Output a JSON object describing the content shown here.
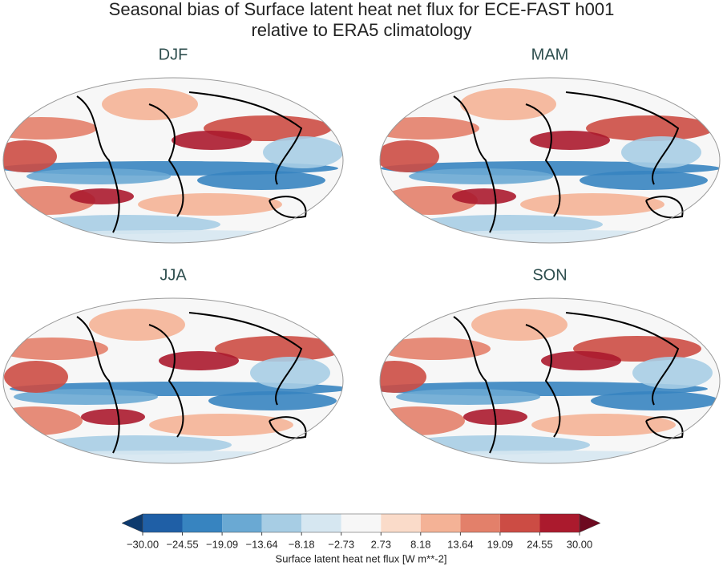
{
  "title": "Seasonal bias of Surface latent heat net flux for ECE-FAST h001",
  "subtitle": "relative to ERA5 climatology",
  "panels": [
    {
      "title": "DJF"
    },
    {
      "title": "MAM"
    },
    {
      "title": "JJA"
    },
    {
      "title": "SON"
    }
  ],
  "colorbar": {
    "label": "Surface latent heat net flux [W m**-2]",
    "ticks": [
      {
        "value": -30,
        "label": "−30.00"
      },
      {
        "value": -24.55,
        "label": "−24.55"
      },
      {
        "value": -19.09,
        "label": "−19.09"
      },
      {
        "value": -13.64,
        "label": "−13.64"
      },
      {
        "value": -8.18,
        "label": "−8.18"
      },
      {
        "value": -2.73,
        "label": "−2.73"
      },
      {
        "value": 2.73,
        "label": "2.73"
      },
      {
        "value": 8.18,
        "label": "8.18"
      },
      {
        "value": 13.64,
        "label": "13.64"
      },
      {
        "value": 19.09,
        "label": "19.09"
      },
      {
        "value": 24.55,
        "label": "24.55"
      },
      {
        "value": 30,
        "label": "30.00"
      }
    ],
    "colors": [
      "#1f5fa6",
      "#3784c0",
      "#6aa9d3",
      "#a7cde4",
      "#d6e7f1",
      "#f7f7f7",
      "#fadbc9",
      "#f4b296",
      "#e3806a",
      "#cc4c44",
      "#ab1a2d"
    ],
    "under_color": "#0d3a6e",
    "over_color": "#6d0a20"
  }
}
